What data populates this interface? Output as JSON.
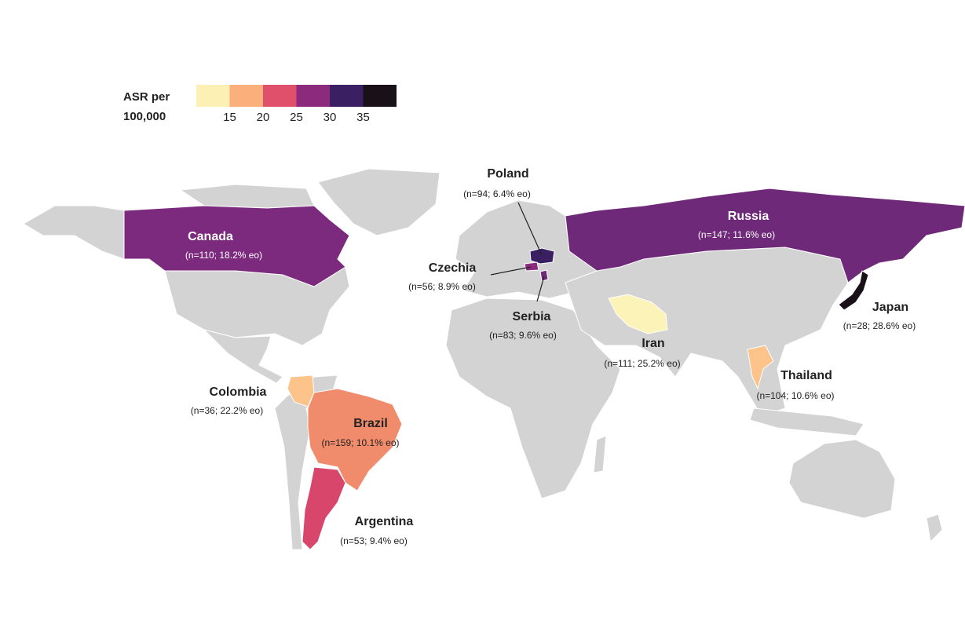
{
  "legend": {
    "title_lines": [
      "ASR per",
      "100,000"
    ],
    "colors": [
      "#fcf0b4",
      "#fbb07c",
      "#e0506a",
      "#8c2a7e",
      "#3b1f63",
      "#1a1018"
    ],
    "ticks": [
      15,
      20,
      25,
      30,
      35
    ]
  },
  "countries": [
    {
      "name": "Canada",
      "stats": "(n=110; 18.2% eo)",
      "color": "#7b2a7e"
    },
    {
      "name": "Poland",
      "stats": "(n=94; 6.4% eo)",
      "color": "#3b1f63"
    },
    {
      "name": "Russia",
      "stats": "(n=147; 11.6% eo)",
      "color": "#6e2a78"
    },
    {
      "name": "Czechia",
      "stats": "(n=56; 8.9% eo)",
      "color": "#8c2a7e"
    },
    {
      "name": "Serbia",
      "stats": "(n=83; 9.6% eo)",
      "color": "#6e2a78"
    },
    {
      "name": "Japan",
      "stats": "(n=28; 28.6% eo)",
      "color": "#1a1018"
    },
    {
      "name": "Iran",
      "stats": "(n=111; 25.2% eo)",
      "color": "#fbf3b8"
    },
    {
      "name": "Thailand",
      "stats": "(n=104; 10.6% eo)",
      "color": "#fcc48b"
    },
    {
      "name": "Colombia",
      "stats": "(n=36; 22.2% eo)",
      "color": "#fcc48b"
    },
    {
      "name": "Brazil",
      "stats": "(n=159; 10.1% eo)",
      "color": "#f08c6c"
    },
    {
      "name": "Argentina",
      "stats": "(n=53; 9.4% eo)",
      "color": "#d9466b"
    }
  ]
}
